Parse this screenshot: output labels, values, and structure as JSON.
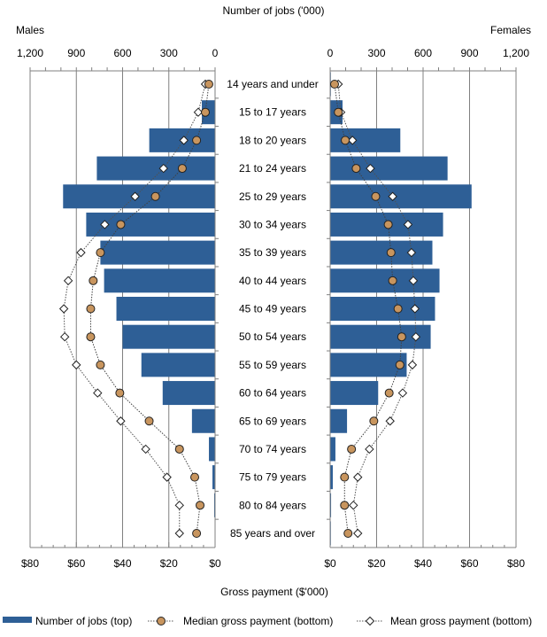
{
  "chart_data": {
    "type": "bar",
    "top_axis_title": "Number of jobs ('000)",
    "bottom_axis_title": "Gross payment ($'000)",
    "left_panel_label": "Males",
    "right_panel_label": "Females",
    "top_ticks_left": [
      "1,200",
      "900",
      "600",
      "300",
      "0"
    ],
    "top_ticks_right": [
      "0",
      "300",
      "600",
      "900",
      "1,200"
    ],
    "bottom_ticks_left": [
      "$80",
      "$60",
      "$40",
      "$20",
      "$0"
    ],
    "bottom_ticks_right": [
      "$0",
      "$20",
      "$40",
      "$60",
      "$80"
    ],
    "jobs_range": [
      0,
      1200
    ],
    "payment_range": [
      0,
      80
    ],
    "grid": true,
    "legend_placement": "bottom",
    "colors": {
      "bar": "#2e5f96",
      "median": "#c8955e",
      "mean": "#ffffff"
    },
    "categories": [
      "14 years and under",
      "15 to 17 years",
      "18 to 20 years",
      "21 to 24 years",
      "25 to 29 years",
      "30 to 34 years",
      "35 to 39 years",
      "40 to 44 years",
      "45 to 49 years",
      "50 to 54 years",
      "55 to 59 years",
      "60 to 64 years",
      "65 to 69 years",
      "70 to 74 years",
      "75 to 79 years",
      "80 to 84 years",
      "85 years and over"
    ],
    "males": {
      "jobs": [
        3,
        86,
        427,
        767,
        986,
        836,
        744,
        720,
        640,
        600,
        478,
        340,
        150,
        40,
        17,
        6,
        2
      ],
      "median": [
        2.7,
        4.2,
        8.0,
        14.2,
        25.8,
        40.8,
        49.6,
        52.7,
        53.8,
        53.8,
        49.6,
        41.2,
        28.5,
        15.4,
        8.8,
        6.5,
        8.0
      ],
      "mean": [
        4.2,
        7.3,
        13.5,
        22.3,
        34.6,
        47.7,
        58.0,
        63.5,
        65.4,
        65.0,
        60.0,
        50.8,
        40.8,
        30.0,
        20.8,
        15.4,
        15.4
      ]
    },
    "females": {
      "jobs": [
        2,
        80,
        453,
        758,
        913,
        729,
        660,
        706,
        677,
        649,
        494,
        310,
        109,
        34,
        17,
        6,
        3
      ],
      "median": [
        1.9,
        3.5,
        6.5,
        11.2,
        19.6,
        25.0,
        26.2,
        26.9,
        29.2,
        30.8,
        30.0,
        25.4,
        18.8,
        9.2,
        6.2,
        6.2,
        7.7
      ],
      "mean": [
        3.5,
        4.6,
        9.6,
        17.3,
        26.9,
        33.5,
        35.0,
        35.8,
        36.5,
        36.9,
        35.4,
        31.2,
        25.8,
        16.9,
        11.9,
        10.0,
        11.9
      ]
    },
    "legend": [
      {
        "name": "Number of jobs (top)",
        "marker": "bar"
      },
      {
        "name": "Median gross payment (bottom)",
        "marker": "circle"
      },
      {
        "name": "Mean gross payment (bottom)",
        "marker": "diamond"
      }
    ]
  }
}
